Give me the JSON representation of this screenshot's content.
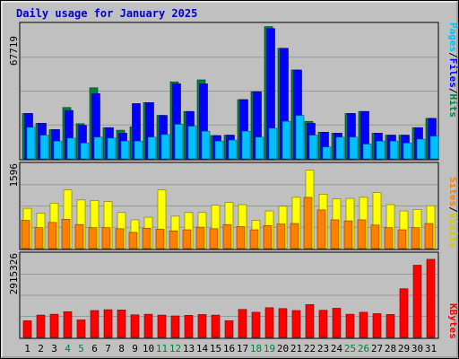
{
  "chart_data": {
    "type": "bar",
    "title": "Daily usage for January 2025",
    "colors": {
      "title": "#0000cc",
      "frame_bg": "#c0c0c0",
      "plot_bg": "#c0c0c0",
      "grid": "#999999",
      "hits": "#008040",
      "files": "#0000ff",
      "pages": "#00c0ff",
      "visits": "#ffff00",
      "sites": "#ff8000",
      "kbytes": "#ff0000",
      "weekend_day": "#008040",
      "weekday": "#000000"
    },
    "days": [
      "1",
      "2",
      "3",
      "4",
      "5",
      "6",
      "7",
      "8",
      "9",
      "10",
      "11",
      "12",
      "13",
      "14",
      "15",
      "16",
      "17",
      "18",
      "19",
      "20",
      "21",
      "22",
      "23",
      "24",
      "25",
      "26",
      "27",
      "28",
      "29",
      "30",
      "31"
    ],
    "weekend_days": [
      "4",
      "5",
      "11",
      "12",
      "18",
      "19",
      "25",
      "26"
    ],
    "panels": {
      "hits_files_pages": {
        "max_label": "67719",
        "max": 67719,
        "side_labels": [
          "Pages",
          "Files",
          "Hits"
        ],
        "side_sep": "/",
        "series": [
          {
            "name": "Hits",
            "values": [
              23000,
              18000,
              14800,
              26000,
              17800,
              36000,
              15800,
              14500,
              16200,
              28500,
              22000,
              39000,
              24000,
              40000,
              11800,
              12000,
              30000,
              34000,
              67000,
              56000,
              45000,
              19000,
              13500,
              13000,
              23000,
              24000,
              13000,
              12000,
              12000,
              15800,
              20500
            ]
          },
          {
            "name": "Files",
            "values": [
              23000,
              18000,
              14800,
              24500,
              17000,
              33000,
              15800,
              13000,
              28000,
              28500,
              22000,
              38000,
              24000,
              38000,
              11800,
              12000,
              30000,
              34000,
              66000,
              56000,
              45000,
              18000,
              13500,
              13000,
              23000,
              24000,
              13000,
              12000,
              12000,
              15800,
              20500
            ]
          },
          {
            "name": "Pages",
            "values": [
              16000,
              12000,
              9000,
              10500,
              8000,
              11000,
              10500,
              9000,
              9000,
              11000,
              12300,
              17500,
              16500,
              14000,
              9000,
              9500,
              14000,
              11000,
              15500,
              19000,
              22000,
              12000,
              6000,
              11000,
              11000,
              7500,
              9000,
              9000,
              8000,
              10000,
              11500
            ]
          }
        ]
      },
      "visits_sites": {
        "max_label": "1596",
        "max": 1596,
        "side_labels": [
          "Sites",
          "Visits"
        ],
        "side_sep": "/",
        "series": [
          {
            "name": "Visits",
            "values": [
              770,
              680,
              870,
              1120,
              930,
              920,
              900,
              690,
              550,
              600,
              1120,
              620,
              690,
              690,
              830,
              880,
              840,
              540,
              720,
              810,
              980,
              1500,
              1040,
              950,
              960,
              980,
              1070,
              840,
              720,
              750,
              820
            ]
          },
          {
            "name": "Sites",
            "values": [
              540,
              400,
              500,
              560,
              460,
              400,
              400,
              380,
              310,
              390,
              370,
              340,
              360,
              410,
              380,
              460,
              420,
              360,
              440,
              470,
              480,
              980,
              740,
              550,
              530,
              550,
              450,
              400,
              360,
              400,
              480
            ]
          }
        ]
      },
      "kbytes": {
        "max_label": "2915326",
        "max": 2915326,
        "side_labels": [
          "KBytes"
        ],
        "side_sep": "",
        "series": [
          {
            "name": "KBytes",
            "values": [
              590000,
              790000,
              820000,
              910000,
              620000,
              950000,
              980000,
              970000,
              800000,
              820000,
              790000,
              760000,
              780000,
              810000,
              790000,
              590000,
              990000,
              890000,
              1050000,
              1020000,
              950000,
              1160000,
              960000,
              1030000,
              820000,
              890000,
              840000,
              810000,
              1720000,
              2550000,
              2760000
            ]
          }
        ]
      }
    }
  }
}
